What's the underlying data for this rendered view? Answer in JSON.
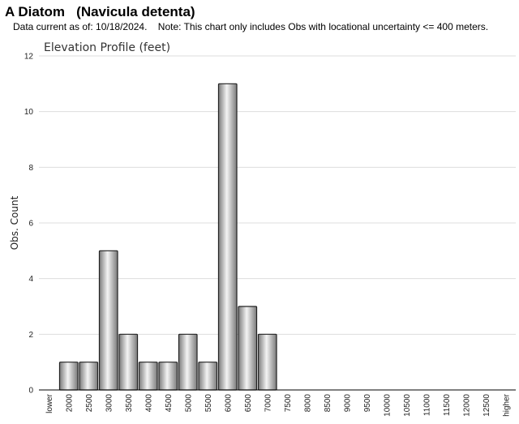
{
  "header": {
    "title": "A Diatom   (Navicula detenta)",
    "note": "Data current as of: 10/18/2024.    Note: This chart only includes Obs with locational uncertainty <= 400 meters."
  },
  "chart_data": {
    "type": "bar",
    "title": "Elevation Profile (feet)",
    "xlabel": "",
    "ylabel": "Obs. Count",
    "ylim": [
      0,
      12
    ],
    "yticks": [
      0,
      2,
      4,
      6,
      8,
      10,
      12
    ],
    "grid": true,
    "categories": [
      "lower",
      "2000",
      "2500",
      "3000",
      "3500",
      "4000",
      "4500",
      "5000",
      "5500",
      "6000",
      "6500",
      "7000",
      "7500",
      "8000",
      "8500",
      "9000",
      "9500",
      "10000",
      "10500",
      "11000",
      "11500",
      "12000",
      "12500",
      "higher"
    ],
    "values": [
      0,
      1,
      1,
      5,
      2,
      1,
      1,
      2,
      1,
      11,
      3,
      2,
      0,
      0,
      0,
      0,
      0,
      0,
      0,
      0,
      0,
      0,
      0,
      0
    ],
    "colors": {
      "bar_light": "#f4f4f4",
      "bar_dark": "#7a7a7a",
      "bar_stroke": "#222222",
      "grid": "#dddddd",
      "axis": "#000000"
    }
  }
}
